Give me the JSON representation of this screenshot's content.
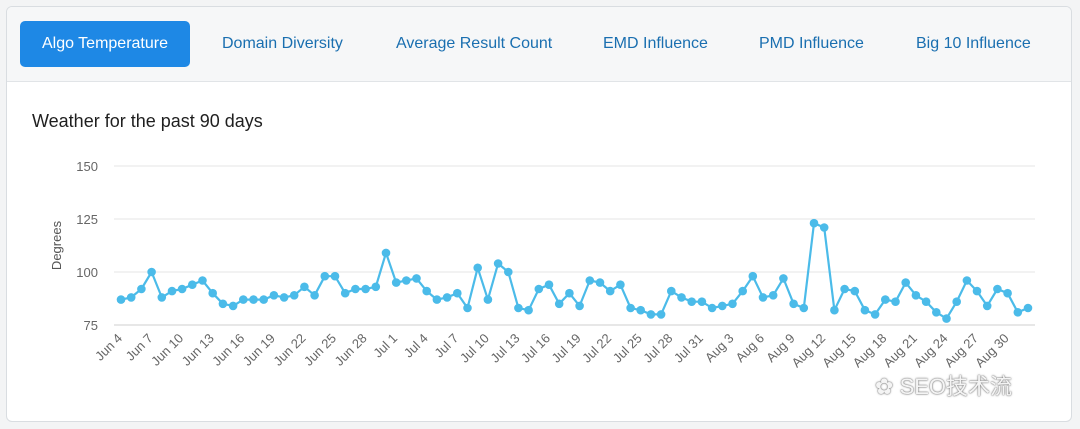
{
  "tabs": [
    {
      "label": "Algo Temperature",
      "active": true
    },
    {
      "label": "Domain Diversity",
      "active": false
    },
    {
      "label": "Average Result Count",
      "active": false
    },
    {
      "label": "EMD Influence",
      "active": false
    },
    {
      "label": "PMD Influence",
      "active": false
    },
    {
      "label": "Big 10 Influence",
      "active": false
    }
  ],
  "watermark": "SEO技术流",
  "colors": {
    "accent": "#1e88e5",
    "series": "#4bbbe9",
    "grid": "#e6e6e6"
  },
  "chart_data": {
    "type": "line",
    "title": "Weather for the past 90 days",
    "xlabel": "",
    "ylabel": "Degrees",
    "ylim": [
      75,
      150
    ],
    "yticks": [
      75,
      100,
      125,
      150
    ],
    "tick_labels": [
      "Jun 4",
      "Jun 7",
      "Jun 10",
      "Jun 13",
      "Jun 16",
      "Jun 19",
      "Jun 22",
      "Jun 25",
      "Jun 28",
      "Jul 1",
      "Jul 4",
      "Jul 7",
      "Jul 10",
      "Jul 13",
      "Jul 16",
      "Jul 19",
      "Jul 22",
      "Jul 25",
      "Jul 28",
      "Jul 31",
      "Aug 3",
      "Aug 6",
      "Aug 9",
      "Aug 12",
      "Aug 15",
      "Aug 18",
      "Aug 21",
      "Aug 24",
      "Aug 27",
      "Aug 30"
    ],
    "tick_every": 3,
    "series": [
      {
        "name": "Algo Temperature",
        "values": [
          87,
          88,
          92,
          100,
          88,
          91,
          92,
          94,
          96,
          90,
          85,
          84,
          87,
          87,
          87,
          89,
          88,
          89,
          93,
          89,
          98,
          98,
          90,
          92,
          92,
          93,
          109,
          95,
          96,
          97,
          91,
          87,
          88,
          90,
          83,
          102,
          87,
          104,
          100,
          83,
          82,
          92,
          94,
          85,
          90,
          84,
          96,
          95,
          91,
          94,
          83,
          82,
          80,
          80,
          91,
          88,
          86,
          86,
          83,
          84,
          85,
          91,
          98,
          88,
          89,
          97,
          85,
          83,
          123,
          121,
          82,
          92,
          91,
          82,
          80,
          87,
          86,
          95,
          89,
          86,
          81,
          78,
          86,
          96,
          91,
          84,
          92,
          90,
          81,
          83
        ]
      }
    ]
  }
}
